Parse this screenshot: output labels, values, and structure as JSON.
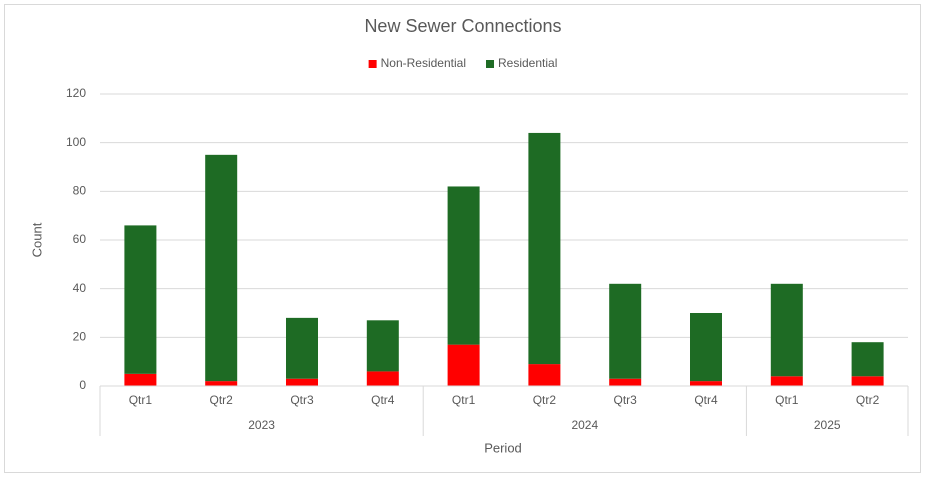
{
  "chart_data": {
    "type": "stacked_bar",
    "title": "New Sewer Connections",
    "x_label": "Period",
    "y_label": "Count",
    "groups": [
      {
        "name": "2023",
        "categories": [
          "Qtr1",
          "Qtr2",
          "Qtr3",
          "Qtr4"
        ]
      },
      {
        "name": "2024",
        "categories": [
          "Qtr1",
          "Qtr2",
          "Qtr3",
          "Qtr4"
        ]
      },
      {
        "name": "2025",
        "categories": [
          "Qtr1",
          "Qtr2"
        ]
      }
    ],
    "series": [
      {
        "name": "Non-Residential",
        "color": "#ff0000",
        "values": [
          5,
          2,
          3,
          6,
          17,
          9,
          3,
          2,
          4,
          4
        ]
      },
      {
        "name": "Residential",
        "color": "#1e6b24",
        "values": [
          61,
          93,
          25,
          21,
          65,
          95,
          39,
          28,
          38,
          14
        ]
      }
    ],
    "ylim": [
      0,
      120
    ],
    "yticks": [
      0,
      20,
      40,
      60,
      80,
      100,
      120
    ],
    "grid": true,
    "legend": "top"
  }
}
